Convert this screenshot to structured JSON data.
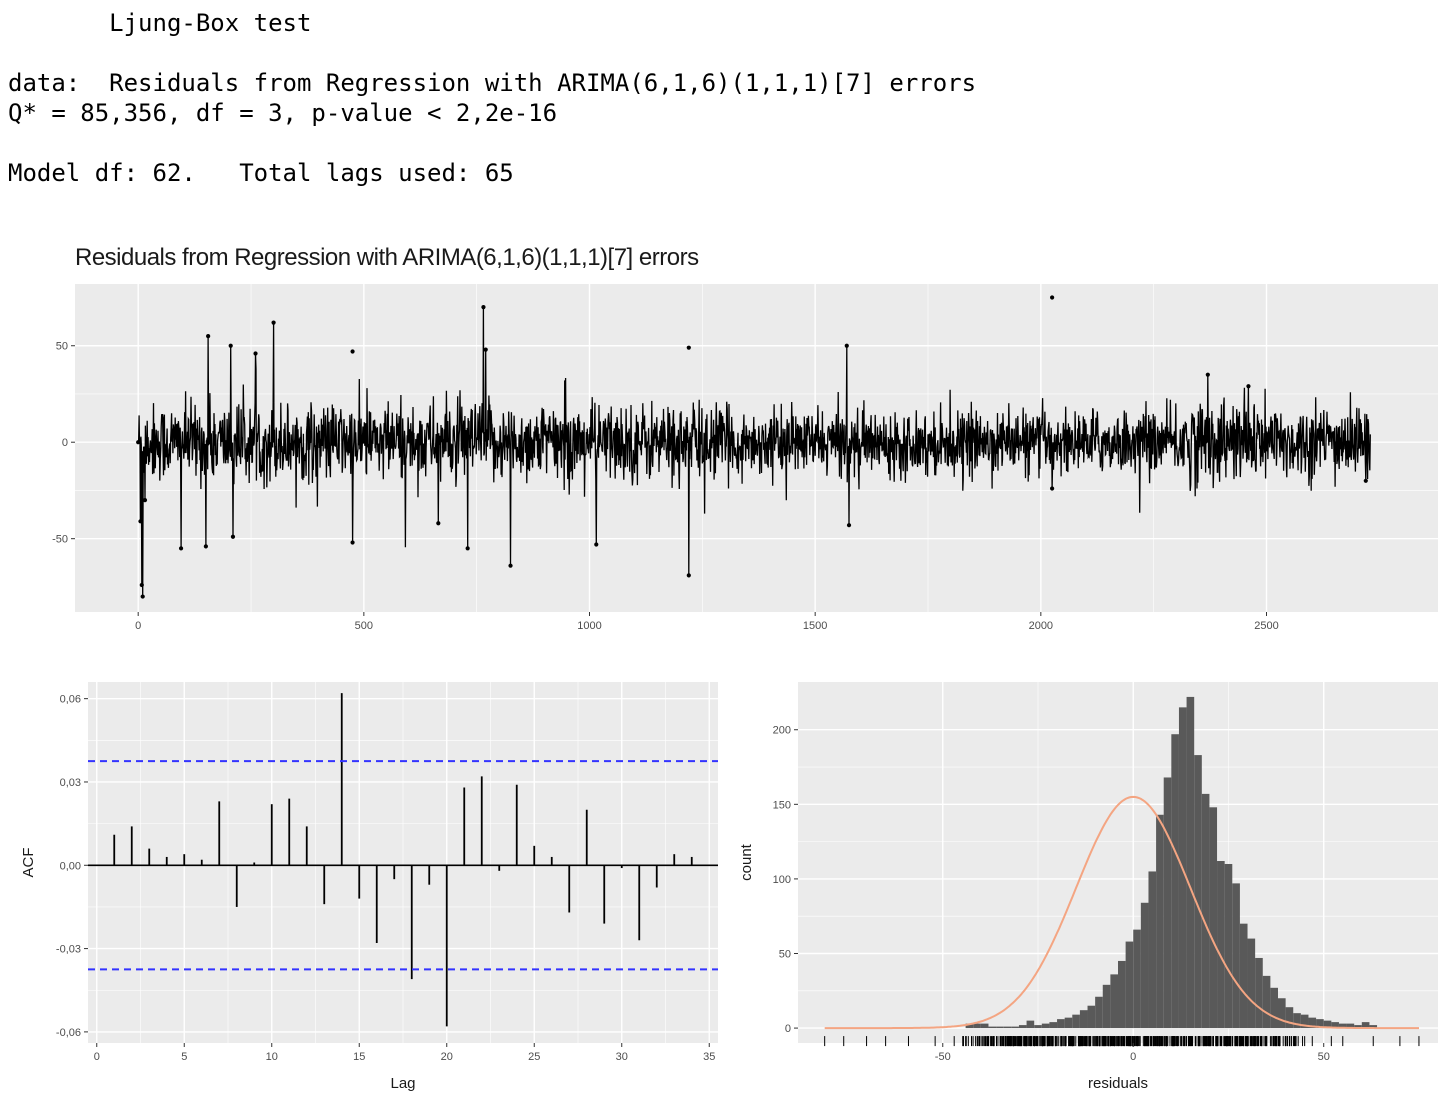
{
  "console": {
    "lines": [
      "       Ljung-Box test",
      "",
      "data:  Residuals from Regression with ARIMA(6,1,6)(1,1,1)[7] errors",
      "Q* = 85,356, df = 3, p-value < 2,2e-16",
      "",
      "Model df: 62.   Total lags used: 65"
    ]
  },
  "colors": {
    "panel_bg": "#ebebeb",
    "grid": "#ffffff",
    "series": "#000000",
    "ci_line": "#3333ff",
    "bar_fill": "#595959",
    "density": "#f4a582"
  },
  "chart_data": [
    {
      "type": "line",
      "title": "Residuals from Regression with ARIMA(6,1,6)(1,1,1)[7] errors",
      "xlabel": "",
      "ylabel": "",
      "xlim": [
        -140,
        2880
      ],
      "ylim": [
        -88,
        82
      ],
      "xticks": [
        0,
        500,
        1000,
        1500,
        2000,
        2500
      ],
      "yticks": [
        -50,
        0,
        50
      ],
      "ytick_labels": [
        "-50",
        "0",
        "50"
      ],
      "grid": true,
      "n_points": 2731,
      "highlights": [
        {
          "x": 0,
          "y": 0
        },
        {
          "x": 5,
          "y": -41
        },
        {
          "x": 8,
          "y": -74
        },
        {
          "x": 10,
          "y": -80
        },
        {
          "x": 15,
          "y": -30
        },
        {
          "x": 95,
          "y": -55
        },
        {
          "x": 155,
          "y": 55
        },
        {
          "x": 150,
          "y": -54
        },
        {
          "x": 205,
          "y": 50
        },
        {
          "x": 210,
          "y": -49
        },
        {
          "x": 260,
          "y": 46
        },
        {
          "x": 300,
          "y": 62
        },
        {
          "x": 475,
          "y": 47
        },
        {
          "x": 475,
          "y": -52
        },
        {
          "x": 665,
          "y": -42
        },
        {
          "x": 730,
          "y": -55
        },
        {
          "x": 765,
          "y": 70
        },
        {
          "x": 770,
          "y": 48
        },
        {
          "x": 825,
          "y": -64
        },
        {
          "x": 1015,
          "y": -53
        },
        {
          "x": 1220,
          "y": 49
        },
        {
          "x": 1220,
          "y": -69
        },
        {
          "x": 1570,
          "y": 50
        },
        {
          "x": 1575,
          "y": -43
        },
        {
          "x": 2025,
          "y": 75
        },
        {
          "x": 2025,
          "y": -24
        },
        {
          "x": 2370,
          "y": 35
        },
        {
          "x": 2460,
          "y": 29
        },
        {
          "x": 2720,
          "y": -20
        }
      ]
    },
    {
      "type": "bar",
      "xlabel": "Lag",
      "ylabel": "ACF",
      "xlim": [
        -0.5,
        35.5
      ],
      "ylim": [
        -0.064,
        0.066
      ],
      "xticks": [
        0,
        5,
        10,
        15,
        20,
        25,
        30,
        35
      ],
      "yticks": [
        -0.06,
        -0.03,
        0.0,
        0.03,
        0.06
      ],
      "ytick_labels": [
        "-0,06",
        "-0,03",
        "0,00",
        "0,03",
        "0,06"
      ],
      "ci": 0.0375,
      "grid": true,
      "lags": [
        1,
        2,
        3,
        4,
        5,
        6,
        7,
        8,
        9,
        10,
        11,
        12,
        13,
        14,
        15,
        16,
        17,
        18,
        19,
        20,
        21,
        22,
        23,
        24,
        25,
        26,
        27,
        28,
        29,
        30,
        31,
        32,
        33,
        34
      ],
      "values": [
        0.011,
        0.014,
        0.006,
        0.003,
        0.004,
        0.002,
        0.023,
        -0.015,
        0.001,
        0.022,
        0.024,
        0.014,
        -0.014,
        0.062,
        -0.012,
        -0.028,
        -0.005,
        -0.041,
        -0.007,
        -0.058,
        0.028,
        0.032,
        -0.002,
        0.029,
        0.007,
        0.003,
        -0.017,
        0.02,
        -0.021,
        -0.001,
        -0.027,
        -0.008,
        0.004,
        0.003
      ]
    },
    {
      "type": "bar",
      "xlabel": "residuals",
      "ylabel": "count",
      "xlim": [
        -88,
        80
      ],
      "ylim": [
        -10,
        232
      ],
      "xticks": [
        -50,
        0,
        50
      ],
      "xtick_labels": [
        "-50",
        "0",
        "50"
      ],
      "yticks": [
        0,
        50,
        100,
        150,
        200
      ],
      "grid": true,
      "binwidth": 2,
      "bin_start": -60,
      "counts": [
        0,
        0,
        0,
        0,
        0,
        0,
        0,
        0,
        3,
        3,
        3,
        1,
        1,
        1,
        1,
        2,
        5,
        2,
        3,
        4,
        6,
        7,
        9,
        12,
        15,
        21,
        29,
        36,
        45,
        58,
        66,
        84,
        105,
        143,
        168,
        197,
        215,
        222,
        183,
        157,
        148,
        112,
        110,
        97,
        70,
        60,
        47,
        35,
        27,
        20,
        14,
        10,
        9,
        7,
        6,
        5,
        4,
        3,
        3,
        2,
        4,
        2
      ],
      "density_peak": 155,
      "density_mean": 0,
      "density_sd": 15,
      "rug_min": -81,
      "rug_max": 75
    }
  ]
}
